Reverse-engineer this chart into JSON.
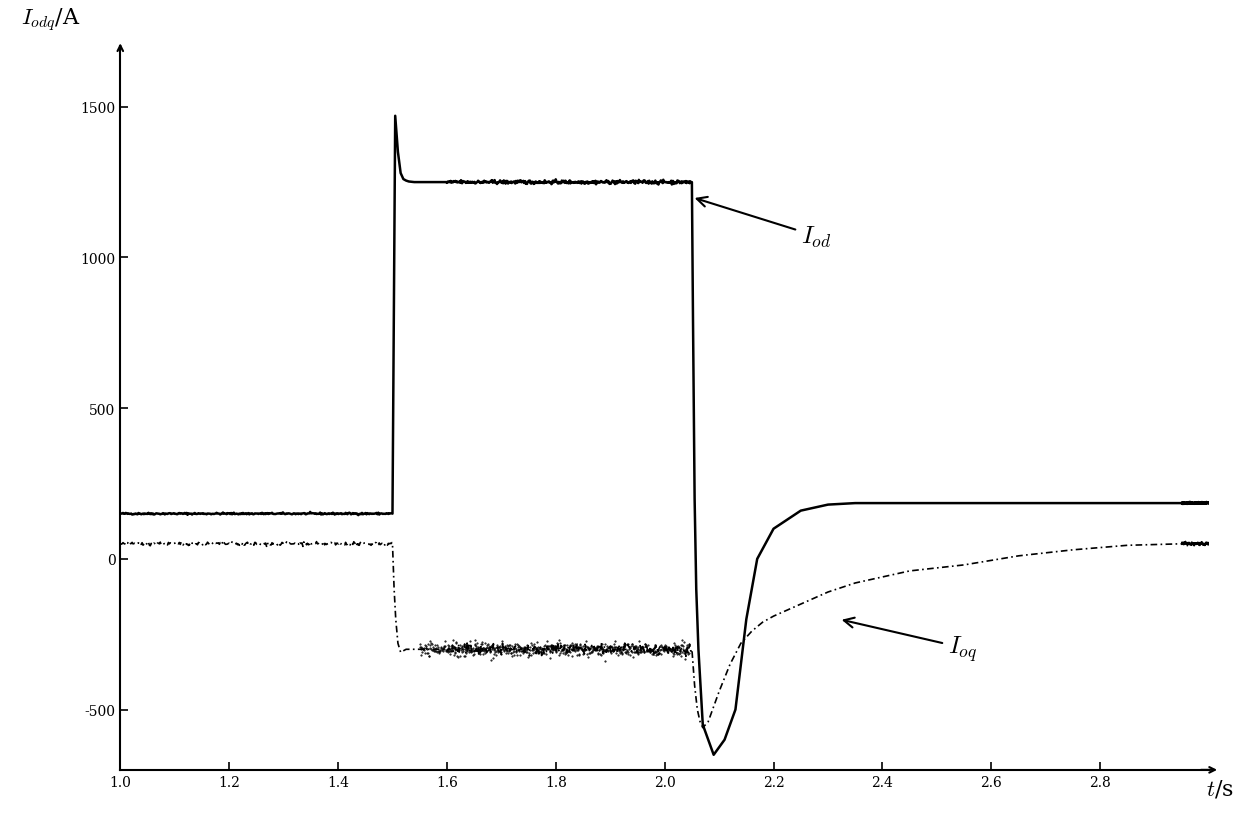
{
  "title": "",
  "ylabel": "$I_{odq}$/A",
  "xlabel": "$t$/s",
  "xlim": [
    1.0,
    3.0
  ],
  "ylim": [
    -700,
    1700
  ],
  "xticks": [
    1.0,
    1.2,
    1.4,
    1.6,
    1.8,
    2.0,
    2.2,
    2.4,
    2.6,
    2.8
  ],
  "yticks": [
    -500,
    0,
    500,
    1000,
    1500
  ],
  "Iod_label": "$I_{od}$",
  "Ioq_label": "$I_{oq}$",
  "line_color": "#000000",
  "background_color": "#ffffff",
  "t1": 1.5,
  "t2": 2.05
}
